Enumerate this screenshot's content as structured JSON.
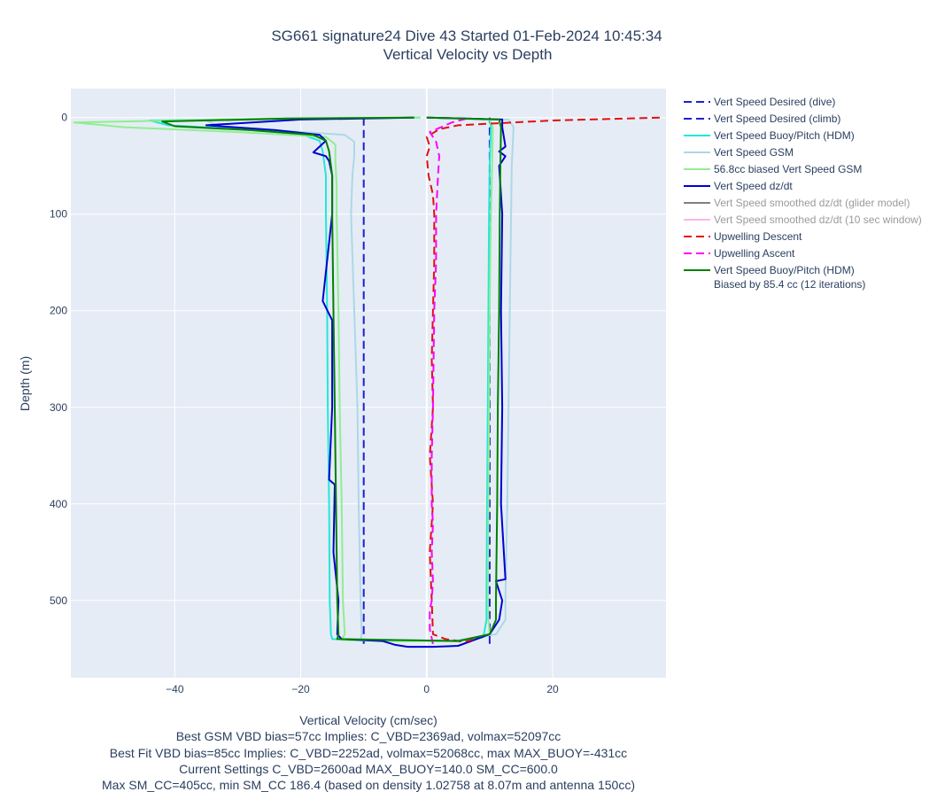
{
  "chart_data": {
    "type": "line",
    "title": [
      "SG661 signature24 Dive 43 Started 01-Feb-2024 10:45:34",
      "Vertical Velocity vs Depth"
    ],
    "xlabel": "Vertical Velocity (cm/sec)",
    "ylabel": "Depth (m)",
    "xlim": [
      -56.5,
      38
    ],
    "ylim": [
      580,
      -30
    ],
    "y_reversed": true,
    "grid": true,
    "legend_position": "right",
    "x_ticks": [
      -40,
      -20,
      0,
      20
    ],
    "y_ticks": [
      0,
      100,
      200,
      300,
      400,
      500
    ],
    "x_tick_labels": [
      "−40",
      "−20",
      "0",
      "20"
    ],
    "y_tick_labels": [
      "0",
      "100",
      "200",
      "300",
      "400",
      "500"
    ],
    "footnotes": [
      "Best GSM VBD bias=57cc Implies: C_VBD=2369ad, volmax=52097cc",
      "Best Fit VBD bias=85cc Implies: C_VBD=2252ad, volmax=52068cc, max MAX_BUOY=-431cc",
      "Current Settings C_VBD=2600ad MAX_BUOY=140.0 SM_CC=600.0",
      "Max SM_CC=405cc, min SM_CC 186.4 (based on density 1.02758 at 8.07m and antenna 150cc)"
    ],
    "series": [
      {
        "name": "Vert Speed Desired (dive)",
        "color": "#1f1fd0",
        "dash": "dash",
        "width": 2,
        "points": [
          [
            -10,
            0
          ],
          [
            -10,
            545
          ]
        ]
      },
      {
        "name": "Vert Speed Desired (climb)",
        "color": "#1f1fd0",
        "dash": "dash",
        "width": 2,
        "points": [
          [
            10,
            545
          ],
          [
            10,
            0
          ]
        ]
      },
      {
        "name": "Vert Speed Buoy/Pitch (HDM)",
        "color": "#22e8d8",
        "dash": "solid",
        "width": 2,
        "points": [
          [
            -1,
            0
          ],
          [
            -20,
            1
          ],
          [
            -44,
            3
          ],
          [
            -41,
            8
          ],
          [
            -30,
            12
          ],
          [
            -20,
            17
          ],
          [
            -17,
            24
          ],
          [
            -16.5,
            35
          ],
          [
            -16,
            60
          ],
          [
            -16,
            100
          ],
          [
            -15.8,
            200
          ],
          [
            -15.7,
            300
          ],
          [
            -15.5,
            400
          ],
          [
            -15.4,
            500
          ],
          [
            -15.2,
            535
          ],
          [
            -15,
            540
          ],
          [
            -5,
            541
          ],
          [
            0,
            541.5
          ],
          [
            5,
            542
          ],
          [
            9,
            538
          ],
          [
            9.5,
            520
          ],
          [
            9.5,
            500
          ],
          [
            9.6,
            400
          ],
          [
            9.7,
            300
          ],
          [
            9.8,
            200
          ],
          [
            9.9,
            100
          ],
          [
            10,
            50
          ],
          [
            10.2,
            10
          ],
          [
            10,
            2
          ],
          [
            0,
            0
          ]
        ]
      },
      {
        "name": "Vert Speed GSM",
        "color": "#add8e6",
        "dash": "solid",
        "width": 2,
        "points": [
          [
            -1,
            0
          ],
          [
            -15,
            1
          ],
          [
            -35,
            3
          ],
          [
            -33,
            9
          ],
          [
            -22,
            14
          ],
          [
            -13,
            18
          ],
          [
            -11.5,
            25
          ],
          [
            -11.5,
            40
          ],
          [
            -11.8,
            60
          ],
          [
            -12,
            100
          ],
          [
            -11.5,
            200
          ],
          [
            -11,
            300
          ],
          [
            -10.8,
            400
          ],
          [
            -10.5,
            500
          ],
          [
            -10.3,
            535
          ],
          [
            -10.5,
            540
          ],
          [
            -5,
            541
          ],
          [
            0,
            541.5
          ],
          [
            5,
            541
          ],
          [
            11,
            535
          ],
          [
            12.5,
            520
          ],
          [
            12.5,
            500
          ],
          [
            12.8,
            400
          ],
          [
            13,
            300
          ],
          [
            13.2,
            200
          ],
          [
            13.4,
            100
          ],
          [
            13.5,
            50
          ],
          [
            13.8,
            10
          ],
          [
            13,
            2
          ],
          [
            0,
            0
          ]
        ]
      },
      {
        "name": "56.8cc biased Vert Speed GSM",
        "color": "#90ee90",
        "dash": "solid",
        "width": 2,
        "points": [
          [
            -1,
            0
          ],
          [
            -25,
            1
          ],
          [
            -56,
            5
          ],
          [
            -48,
            10
          ],
          [
            -30,
            15
          ],
          [
            -16,
            20
          ],
          [
            -14.5,
            28
          ],
          [
            -14.5,
            45
          ],
          [
            -14.3,
            70
          ],
          [
            -14.3,
            100
          ],
          [
            -14,
            200
          ],
          [
            -13.8,
            300
          ],
          [
            -13.5,
            400
          ],
          [
            -13.3,
            500
          ],
          [
            -13,
            535
          ],
          [
            -13.5,
            541
          ],
          [
            -5,
            542
          ],
          [
            0,
            542
          ],
          [
            5,
            542
          ],
          [
            10,
            535
          ],
          [
            9.8,
            520
          ],
          [
            9.7,
            500
          ],
          [
            9.8,
            400
          ],
          [
            9.9,
            300
          ],
          [
            10,
            200
          ],
          [
            10.2,
            100
          ],
          [
            10.4,
            50
          ],
          [
            10.5,
            10
          ],
          [
            10,
            2
          ],
          [
            0,
            0
          ]
        ]
      },
      {
        "name": "Vert Speed dz/dt",
        "color": "#0000d0",
        "dash": "solid",
        "width": 2,
        "points": [
          [
            -2,
            0
          ],
          [
            -20,
            2
          ],
          [
            -35,
            8
          ],
          [
            -24,
            13
          ],
          [
            -17,
            18
          ],
          [
            -16,
            24
          ],
          [
            -18,
            36
          ],
          [
            -16,
            40
          ],
          [
            -15.5,
            45
          ],
          [
            -15,
            60
          ],
          [
            -15,
            100
          ],
          [
            -16.5,
            190
          ],
          [
            -15,
            210
          ],
          [
            -15,
            300
          ],
          [
            -15.5,
            375
          ],
          [
            -14.6,
            380
          ],
          [
            -14.8,
            450
          ],
          [
            -14,
            500
          ],
          [
            -14.2,
            535
          ],
          [
            -13.5,
            540
          ],
          [
            -7,
            542
          ],
          [
            -5,
            546
          ],
          [
            -3,
            548
          ],
          [
            1,
            548
          ],
          [
            5,
            547
          ],
          [
            10,
            535
          ],
          [
            11.5,
            520
          ],
          [
            12,
            500
          ],
          [
            11,
            480
          ],
          [
            12.5,
            478
          ],
          [
            11.8,
            400
          ],
          [
            12,
            300
          ],
          [
            11.8,
            200
          ],
          [
            12,
            100
          ],
          [
            11.5,
            50
          ],
          [
            12.5,
            40
          ],
          [
            11.5,
            35
          ],
          [
            12.5,
            30
          ],
          [
            12,
            10
          ],
          [
            12,
            2
          ],
          [
            0,
            0
          ]
        ]
      },
      {
        "name": "Vert Speed smoothed dz/dt (glider model)",
        "color": "#808080",
        "dash": "solid",
        "width": 2,
        "muted": true,
        "points": []
      },
      {
        "name": "Vert Speed smoothed dz/dt (10 sec window)",
        "color": "#ffb6e6",
        "dash": "solid",
        "width": 2,
        "muted": true,
        "points": []
      },
      {
        "name": "Upwelling Descent",
        "color": "#e01010",
        "dash": "dash",
        "width": 2,
        "points": [
          [
            37,
            0
          ],
          [
            20,
            3
          ],
          [
            5,
            8
          ],
          [
            2,
            12
          ],
          [
            0,
            20
          ],
          [
            0.5,
            30
          ],
          [
            0,
            40
          ],
          [
            0.3,
            60
          ],
          [
            1,
            80
          ],
          [
            1.2,
            100
          ],
          [
            1.2,
            150
          ],
          [
            1,
            200
          ],
          [
            0.8,
            250
          ],
          [
            1,
            300
          ],
          [
            0.5,
            350
          ],
          [
            1,
            400
          ],
          [
            0.5,
            450
          ],
          [
            0.8,
            500
          ],
          [
            1,
            535
          ],
          [
            3,
            540
          ],
          [
            6,
            543
          ],
          [
            8,
            539
          ]
        ]
      },
      {
        "name": "Upwelling Ascent",
        "color": "#ff00ff",
        "dash": "dash",
        "width": 2,
        "points": [
          [
            1,
            545
          ],
          [
            0.5,
            530
          ],
          [
            0.5,
            510
          ],
          [
            0.8,
            500
          ],
          [
            1,
            480
          ],
          [
            0.8,
            450
          ],
          [
            1,
            420
          ],
          [
            0.8,
            400
          ],
          [
            0.8,
            380
          ],
          [
            0.8,
            350
          ],
          [
            1,
            300
          ],
          [
            1.2,
            200
          ],
          [
            1.5,
            150
          ],
          [
            1.5,
            100
          ],
          [
            1.8,
            60
          ],
          [
            2,
            40
          ],
          [
            1.5,
            25
          ],
          [
            0.5,
            15
          ],
          [
            4,
            5
          ],
          [
            7,
            0
          ]
        ]
      },
      {
        "name": [
          "Vert Speed Buoy/Pitch (HDM)",
          "Biased by 85.4 cc (12 iterations)"
        ],
        "color": "#008000",
        "dash": "solid",
        "width": 2,
        "points": [
          [
            -2,
            0
          ],
          [
            -22,
            1
          ],
          [
            -42,
            4
          ],
          [
            -40,
            9
          ],
          [
            -28,
            13
          ],
          [
            -18,
            18
          ],
          [
            -16,
            24
          ],
          [
            -15.5,
            35
          ],
          [
            -15,
            60
          ],
          [
            -15,
            100
          ],
          [
            -14.8,
            200
          ],
          [
            -14.6,
            300
          ],
          [
            -14.4,
            400
          ],
          [
            -14.2,
            500
          ],
          [
            -14,
            535
          ],
          [
            -14.2,
            540
          ],
          [
            -5,
            541
          ],
          [
            0,
            541.5
          ],
          [
            5,
            542
          ],
          [
            10,
            535
          ],
          [
            11,
            520
          ],
          [
            11,
            500
          ],
          [
            11.2,
            400
          ],
          [
            11.3,
            300
          ],
          [
            11.5,
            200
          ],
          [
            11.6,
            100
          ],
          [
            11.7,
            50
          ],
          [
            11.8,
            10
          ],
          [
            11.5,
            2
          ],
          [
            0,
            0
          ]
        ]
      }
    ]
  }
}
